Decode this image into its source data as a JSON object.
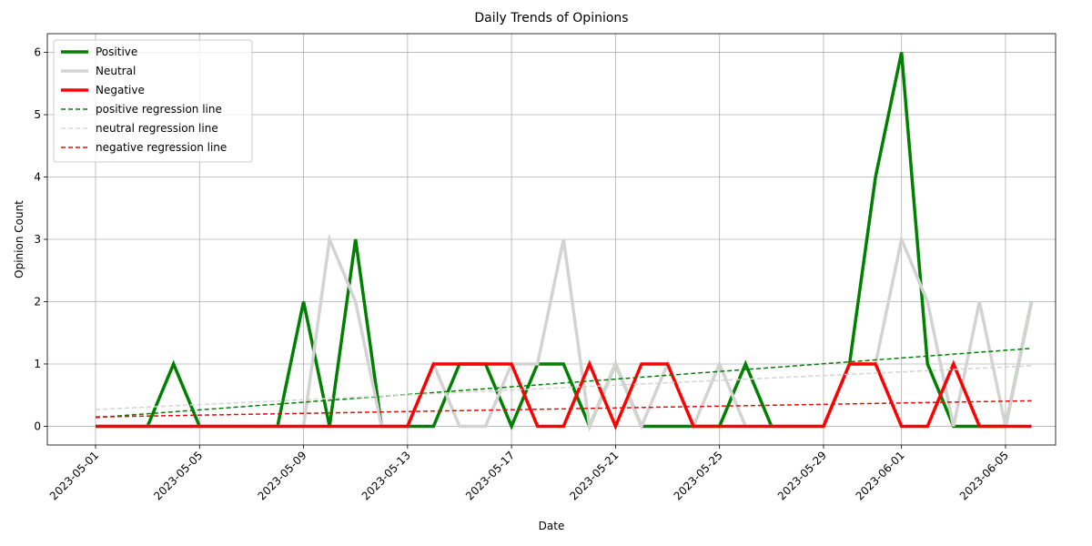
{
  "chart_data": {
    "type": "line",
    "title": "Daily Trends of Opinions",
    "xlabel": "Date",
    "ylabel": "Opinion Count",
    "x": [
      "2023-05-01",
      "2023-05-02",
      "2023-05-03",
      "2023-05-04",
      "2023-05-05",
      "2023-05-06",
      "2023-05-07",
      "2023-05-08",
      "2023-05-09",
      "2023-05-10",
      "2023-05-11",
      "2023-05-12",
      "2023-05-13",
      "2023-05-14",
      "2023-05-15",
      "2023-05-16",
      "2023-05-17",
      "2023-05-18",
      "2023-05-19",
      "2023-05-20",
      "2023-05-21",
      "2023-05-22",
      "2023-05-23",
      "2023-05-24",
      "2023-05-25",
      "2023-05-26",
      "2023-05-27",
      "2023-05-28",
      "2023-05-29",
      "2023-05-30",
      "2023-05-31",
      "2023-06-01",
      "2023-06-02",
      "2023-06-03",
      "2023-06-04",
      "2023-06-05",
      "2023-06-06"
    ],
    "series": [
      {
        "name": "Positive",
        "color": "#008000",
        "values": [
          0,
          0,
          0,
          1,
          0,
          0,
          0,
          0,
          2,
          0,
          3,
          0,
          0,
          0,
          1,
          1,
          0,
          1,
          1,
          0,
          1,
          0,
          0,
          0,
          0,
          1,
          0,
          0,
          0,
          1,
          4,
          6,
          1,
          0,
          0,
          0,
          2
        ]
      },
      {
        "name": "Neutral",
        "color": "#d3d3d3",
        "values": [
          0,
          0,
          0,
          0,
          0,
          0,
          0,
          0,
          0,
          3,
          2,
          0,
          0,
          1,
          0,
          0,
          1,
          1,
          3,
          0,
          1,
          0,
          1,
          0,
          1,
          0,
          0,
          0,
          0,
          1,
          1,
          3,
          2,
          0,
          2,
          0,
          2
        ]
      },
      {
        "name": "Negative",
        "color": "#ff0000",
        "values": [
          0,
          0,
          0,
          0,
          0,
          0,
          0,
          0,
          0,
          0,
          0,
          0,
          0,
          1,
          1,
          1,
          1,
          0,
          0,
          1,
          0,
          1,
          1,
          0,
          0,
          0,
          0,
          0,
          0,
          1,
          1,
          0,
          0,
          1,
          0,
          0,
          0
        ]
      }
    ],
    "regression": [
      {
        "name": "positive regression line",
        "color": "#008000",
        "x": [
          "2023-05-01",
          "2023-06-06"
        ],
        "values": [
          0.14,
          1.25
        ]
      },
      {
        "name": "neutral regression line",
        "color": "#d3d3d3",
        "x": [
          "2023-05-01",
          "2023-06-06"
        ],
        "values": [
          0.27,
          0.97
        ]
      },
      {
        "name": "negative regression line",
        "color": "#ff0000",
        "x": [
          "2023-05-01",
          "2023-06-06"
        ],
        "values": [
          0.15,
          0.41
        ]
      }
    ],
    "xticks": [
      "2023-05-01",
      "2023-05-05",
      "2023-05-09",
      "2023-05-13",
      "2023-05-17",
      "2023-05-21",
      "2023-05-25",
      "2023-05-29",
      "2023-06-01",
      "2023-06-05"
    ],
    "ylim": [
      -0.3,
      6.3
    ],
    "yticks": [
      0,
      1,
      2,
      3,
      4,
      5,
      6
    ],
    "grid": true,
    "legend": "upper-left"
  }
}
